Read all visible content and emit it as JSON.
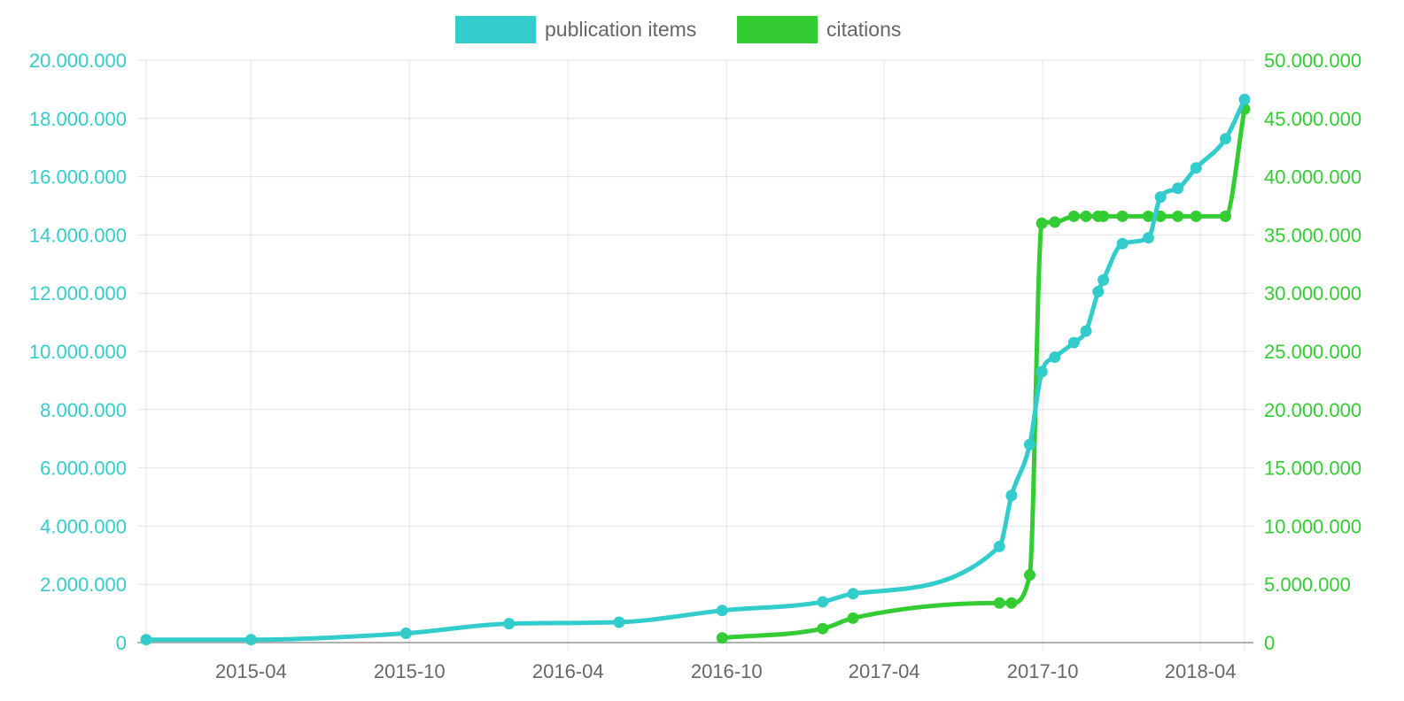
{
  "chart_data": {
    "type": "line",
    "legend_position": "top-center",
    "grid": true,
    "x_ticks": [
      "2015-04",
      "2015-10",
      "2016-04",
      "2016-10",
      "2017-04",
      "2017-10",
      "2018-04"
    ],
    "xlim": [
      "2014-12-01",
      "2018-05-22"
    ],
    "y_left": {
      "lim": [
        0,
        20000000
      ],
      "ticks": [
        "0",
        "2.000.000",
        "4.000.000",
        "6.000.000",
        "8.000.000",
        "10.000.000",
        "12.000.000",
        "14.000.000",
        "16.000.000",
        "18.000.000",
        "20.000.000"
      ],
      "color": "#33CCCC"
    },
    "y_right": {
      "lim": [
        0,
        50000000
      ],
      "ticks": [
        "0",
        "5.000.000",
        "10.000.000",
        "15.000.000",
        "20.000.000",
        "25.000.000",
        "30.000.000",
        "35.000.000",
        "40.000.000",
        "45.000.000",
        "50.000.000"
      ],
      "color": "#33CC33"
    },
    "series": [
      {
        "name": "publication items",
        "axis": "left",
        "color": "#33CCCC",
        "points": [
          [
            "2014-12-01",
            100000
          ],
          [
            "2015-04-01",
            100000
          ],
          [
            "2015-09-27",
            320000
          ],
          [
            "2016-01-24",
            650000
          ],
          [
            "2016-05-30",
            700000
          ],
          [
            "2016-09-26",
            1100000
          ],
          [
            "2017-01-20",
            1400000
          ],
          [
            "2017-02-24",
            1680000
          ],
          [
            "2017-08-12",
            3300000
          ],
          [
            "2017-08-26",
            5050000
          ],
          [
            "2017-09-16",
            6800000
          ],
          [
            "2017-09-30",
            9300000
          ],
          [
            "2017-10-15",
            9800000
          ],
          [
            "2017-11-06",
            10300000
          ],
          [
            "2017-11-20",
            10700000
          ],
          [
            "2017-12-04",
            12050000
          ],
          [
            "2017-12-10",
            12450000
          ],
          [
            "2018-01-01",
            13700000
          ],
          [
            "2018-01-31",
            13900000
          ],
          [
            "2018-02-14",
            15300000
          ],
          [
            "2018-03-06",
            15600000
          ],
          [
            "2018-03-27",
            16300000
          ],
          [
            "2018-04-30",
            17300000
          ],
          [
            "2018-05-22",
            18650000
          ]
        ]
      },
      {
        "name": "citations",
        "axis": "right",
        "color": "#33CC33",
        "points": [
          [
            "2016-09-26",
            400000
          ],
          [
            "2017-01-20",
            1200000
          ],
          [
            "2017-02-24",
            2100000
          ],
          [
            "2017-08-12",
            3400000
          ],
          [
            "2017-08-26",
            3400000
          ],
          [
            "2017-09-16",
            5800000
          ],
          [
            "2017-09-30",
            36000000
          ],
          [
            "2017-10-15",
            36100000
          ],
          [
            "2017-11-06",
            36600000
          ],
          [
            "2017-11-20",
            36600000
          ],
          [
            "2017-12-04",
            36600000
          ],
          [
            "2017-12-10",
            36600000
          ],
          [
            "2018-01-01",
            36600000
          ],
          [
            "2018-01-31",
            36600000
          ],
          [
            "2018-02-14",
            36600000
          ],
          [
            "2018-03-06",
            36600000
          ],
          [
            "2018-03-27",
            36600000
          ],
          [
            "2018-04-30",
            36600000
          ],
          [
            "2018-05-22",
            45800000
          ]
        ]
      }
    ]
  }
}
